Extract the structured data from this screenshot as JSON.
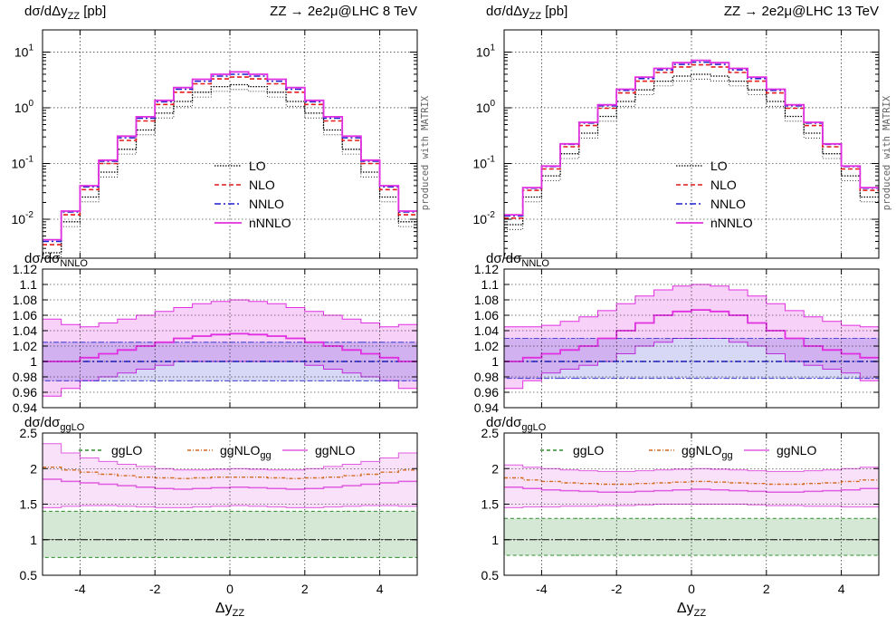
{
  "colors": {
    "LO": "#000000",
    "NLO": "#e41a1c",
    "NNLO": "#1f1fcc",
    "nNNLO": "#e02fe0",
    "ggLO": "#2e8b2e",
    "ggNLOgg": "#d2691e",
    "ggNLO": "#e05ce0"
  },
  "side_note": "produced with MATRIX",
  "legends": {
    "top": [
      "LO",
      "NLO",
      "NNLO",
      "nNNLO"
    ],
    "bottom": [
      "ggLO",
      "ggNLO",
      "gg",
      "ggNLO"
    ]
  },
  "chart_data": [
    {
      "type": "line",
      "title": "ZZ → 2e2μ@LHC 8 TeV",
      "panel_titles": {
        "top": "dσ/dΔy",
        "top_sub": "ZZ",
        "top_unit": " [pb]",
        "mid": "dσ/dσ",
        "mid_sub": "NNLO",
        "bot": "dσ/dσ",
        "bot_sub": "ggLO"
      },
      "xlabel": "Δy",
      "xlabel_sub": "ZZ",
      "xlim": [
        -5,
        5
      ],
      "xticks": [
        "-4",
        "-2",
        "0",
        "2",
        "4"
      ],
      "top_yscale": "log",
      "top_ylim": [
        0.002,
        25
      ],
      "top_yticks": [
        [
          "10",
          "1"
        ],
        [
          "10",
          "0"
        ],
        [
          "10",
          "-1"
        ],
        [
          "10",
          "-2"
        ]
      ],
      "mid_ylim": [
        0.94,
        1.12
      ],
      "mid_yticks": [
        "1.12",
        "1.1",
        "1.08",
        "1.06",
        "1.04",
        "1.02",
        "1",
        "0.98",
        "0.96",
        "0.94"
      ],
      "bot_ylim": [
        0.5,
        2.5
      ],
      "bot_yticks": [
        "2.5",
        "2",
        "1.5",
        "1",
        "0.5"
      ],
      "bins": [
        -5,
        -4.5,
        -4,
        -3.5,
        -3,
        -2.5,
        -2,
        -1.5,
        -1,
        -0.5,
        0,
        0.5,
        1,
        1.5,
        2,
        2.5,
        3,
        3.5,
        4,
        4.5,
        5
      ],
      "series": [
        {
          "name": "LO",
          "values": [
            0.0025,
            0.009,
            0.025,
            0.07,
            0.18,
            0.4,
            0.8,
            1.3,
            1.9,
            2.4,
            2.6,
            2.4,
            1.9,
            1.3,
            0.8,
            0.4,
            0.18,
            0.07,
            0.025,
            0.009,
            0.0025
          ]
        },
        {
          "name": "NLO",
          "values": [
            0.0035,
            0.012,
            0.034,
            0.1,
            0.26,
            0.58,
            1.15,
            1.9,
            2.7,
            3.3,
            3.55,
            3.3,
            2.7,
            1.9,
            1.15,
            0.58,
            0.26,
            0.1,
            0.034,
            0.012,
            0.0035
          ]
        },
        {
          "name": "NNLO",
          "values": [
            0.004,
            0.0135,
            0.038,
            0.11,
            0.29,
            0.65,
            1.28,
            2.15,
            3.0,
            3.7,
            4.0,
            3.7,
            3.0,
            2.15,
            1.28,
            0.65,
            0.29,
            0.11,
            0.038,
            0.0135,
            0.004
          ]
        },
        {
          "name": "nNNLO",
          "values": [
            0.0043,
            0.014,
            0.04,
            0.115,
            0.31,
            0.69,
            1.36,
            2.3,
            3.25,
            4.0,
            4.4,
            4.0,
            3.25,
            2.3,
            1.36,
            0.69,
            0.31,
            0.115,
            0.04,
            0.014,
            0.0043
          ]
        }
      ],
      "ratio_nnlo": {
        "NNLO": {
          "center": 1.0,
          "band": [
            0.975,
            1.025
          ]
        },
        "nNNLO_center": [
          1.0,
          1.0,
          1.005,
          1.01,
          1.015,
          1.02,
          1.025,
          1.03,
          1.033,
          1.035,
          1.036,
          1.035,
          1.033,
          1.03,
          1.025,
          1.02,
          1.015,
          1.01,
          1.005,
          1.0,
          1.0
        ],
        "nNNLO_band_hi": [
          1.055,
          1.048,
          1.045,
          1.05,
          1.055,
          1.06,
          1.065,
          1.07,
          1.075,
          1.078,
          1.08,
          1.078,
          1.075,
          1.07,
          1.065,
          1.06,
          1.055,
          1.05,
          1.045,
          1.048,
          1.055
        ],
        "nNNLO_band_lo": [
          0.955,
          0.965,
          0.975,
          0.98,
          0.985,
          0.99,
          0.995,
          1.0,
          1.0,
          1.0,
          1.0,
          1.0,
          1.0,
          1.0,
          0.995,
          0.99,
          0.985,
          0.98,
          0.975,
          0.965,
          0.955
        ]
      },
      "ratio_gglo": {
        "ggLO_band": [
          0.75,
          1.4
        ],
        "ggNLOgg": [
          2.02,
          1.98,
          1.95,
          1.92,
          1.9,
          1.88,
          1.87,
          1.86,
          1.87,
          1.88,
          1.88,
          1.88,
          1.87,
          1.86,
          1.87,
          1.88,
          1.9,
          1.92,
          1.95,
          1.98,
          2.02
        ],
        "ggNLO_center": [
          1.85,
          1.82,
          1.8,
          1.78,
          1.76,
          1.74,
          1.72,
          1.71,
          1.72,
          1.73,
          1.74,
          1.73,
          1.72,
          1.71,
          1.72,
          1.74,
          1.76,
          1.78,
          1.8,
          1.82,
          1.85
        ],
        "ggNLO_band_hi": [
          2.35,
          2.22,
          2.15,
          2.1,
          2.06,
          2.03,
          2.0,
          1.98,
          1.98,
          1.99,
          2.0,
          1.99,
          1.98,
          1.98,
          2.0,
          2.03,
          2.06,
          2.1,
          2.15,
          2.22,
          2.35
        ],
        "ggNLO_band_lo": [
          1.45,
          1.47,
          1.48,
          1.48,
          1.47,
          1.46,
          1.45,
          1.45,
          1.46,
          1.47,
          1.48,
          1.47,
          1.46,
          1.45,
          1.45,
          1.46,
          1.47,
          1.48,
          1.48,
          1.47,
          1.45
        ]
      }
    },
    {
      "type": "line",
      "title": "ZZ → 2e2μ@LHC 13 TeV",
      "panel_titles": {
        "top": "dσ/dΔy",
        "top_sub": "ZZ",
        "top_unit": " [pb]",
        "mid": "dσ/dσ",
        "mid_sub": "NNLO",
        "bot": "dσ/dσ",
        "bot_sub": "ggLO"
      },
      "xlabel": "Δy",
      "xlabel_sub": "ZZ",
      "xlim": [
        -5,
        5
      ],
      "xticks": [
        "-4",
        "-2",
        "0",
        "2",
        "4"
      ],
      "top_yscale": "log",
      "top_ylim": [
        0.002,
        25
      ],
      "top_yticks": [
        [
          "10",
          "1"
        ],
        [
          "10",
          "0"
        ],
        [
          "10",
          "-1"
        ],
        [
          "10",
          "-2"
        ]
      ],
      "mid_ylim": [
        0.94,
        1.12
      ],
      "mid_yticks": [
        "1.12",
        "1.1",
        "1.08",
        "1.06",
        "1.04",
        "1.02",
        "1",
        "0.98",
        "0.96",
        "0.94"
      ],
      "bot_ylim": [
        0.5,
        2.5
      ],
      "bot_yticks": [
        "2.5",
        "2",
        "1.5",
        "1",
        "0.5"
      ],
      "bins": [
        -5,
        -4.5,
        -4,
        -3.5,
        -3,
        -2.5,
        -2,
        -1.5,
        -1,
        -0.5,
        0,
        0.5,
        1,
        1.5,
        2,
        2.5,
        3,
        3.5,
        4,
        4.5,
        5
      ],
      "series": [
        {
          "name": "LO",
          "values": [
            0.008,
            0.025,
            0.06,
            0.15,
            0.35,
            0.7,
            1.3,
            2.1,
            3.0,
            3.7,
            4.0,
            3.7,
            3.0,
            2.1,
            1.3,
            0.7,
            0.35,
            0.15,
            0.06,
            0.025,
            0.008
          ]
        },
        {
          "name": "NLO",
          "values": [
            0.0105,
            0.033,
            0.08,
            0.2,
            0.48,
            0.98,
            1.85,
            3.0,
            4.3,
            5.4,
            5.9,
            5.4,
            4.3,
            3.0,
            1.85,
            0.98,
            0.48,
            0.2,
            0.08,
            0.033,
            0.0105
          ]
        },
        {
          "name": "NNLO",
          "values": [
            0.0115,
            0.036,
            0.088,
            0.22,
            0.53,
            1.08,
            2.05,
            3.35,
            4.8,
            6.0,
            6.6,
            6.0,
            4.8,
            3.35,
            2.05,
            1.08,
            0.53,
            0.22,
            0.088,
            0.036,
            0.0115
          ]
        },
        {
          "name": "nNNLO",
          "values": [
            0.012,
            0.037,
            0.09,
            0.225,
            0.55,
            1.13,
            2.15,
            3.55,
            5.1,
            6.45,
            7.1,
            6.45,
            5.1,
            3.55,
            2.15,
            1.13,
            0.55,
            0.225,
            0.09,
            0.037,
            0.012
          ]
        }
      ],
      "ratio_nnlo": {
        "NNLO": {
          "center": 1.0,
          "band": [
            0.978,
            1.03
          ]
        },
        "nNNLO_center": [
          1.0,
          1.005,
          1.01,
          1.015,
          1.02,
          1.03,
          1.04,
          1.05,
          1.06,
          1.065,
          1.067,
          1.065,
          1.06,
          1.05,
          1.04,
          1.03,
          1.02,
          1.015,
          1.01,
          1.005,
          1.0
        ],
        "nNNLO_band_hi": [
          1.045,
          1.045,
          1.047,
          1.052,
          1.058,
          1.066,
          1.075,
          1.085,
          1.093,
          1.098,
          1.1,
          1.098,
          1.093,
          1.085,
          1.075,
          1.066,
          1.058,
          1.052,
          1.047,
          1.045,
          1.045
        ],
        "nNNLO_band_lo": [
          0.965,
          0.975,
          0.985,
          0.99,
          0.995,
          1.0,
          1.01,
          1.02,
          1.025,
          1.03,
          1.03,
          1.03,
          1.025,
          1.02,
          1.01,
          1.0,
          0.995,
          0.99,
          0.985,
          0.975,
          0.965
        ]
      },
      "ratio_gglo": {
        "ggLO_band": [
          0.78,
          1.3
        ],
        "ggNLOgg": [
          1.87,
          1.84,
          1.82,
          1.8,
          1.79,
          1.78,
          1.78,
          1.79,
          1.8,
          1.81,
          1.82,
          1.81,
          1.8,
          1.79,
          1.78,
          1.78,
          1.79,
          1.8,
          1.82,
          1.84,
          1.87
        ],
        "ggNLO_center": [
          1.74,
          1.72,
          1.7,
          1.69,
          1.68,
          1.67,
          1.67,
          1.68,
          1.69,
          1.7,
          1.71,
          1.7,
          1.69,
          1.68,
          1.67,
          1.67,
          1.68,
          1.69,
          1.7,
          1.72,
          1.74
        ],
        "ggNLO_band_hi": [
          2.05,
          2.02,
          2.0,
          1.98,
          1.97,
          1.96,
          1.96,
          1.97,
          1.98,
          1.99,
          2.0,
          1.99,
          1.98,
          1.97,
          1.96,
          1.96,
          1.97,
          1.98,
          2.0,
          2.02,
          2.05
        ],
        "ggNLO_band_lo": [
          1.45,
          1.46,
          1.46,
          1.47,
          1.47,
          1.48,
          1.48,
          1.49,
          1.5,
          1.5,
          1.5,
          1.5,
          1.5,
          1.49,
          1.48,
          1.48,
          1.47,
          1.47,
          1.46,
          1.46,
          1.45
        ]
      }
    }
  ]
}
